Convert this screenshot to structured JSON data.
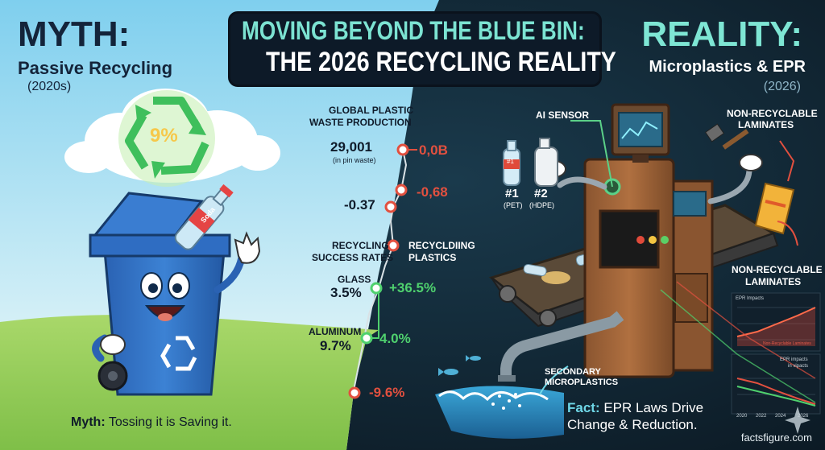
{
  "header": {
    "title_line1": "MOVING BEYOND THE BLUE BIN:",
    "title_line2": "THE 2026 RECYCLING REALITY"
  },
  "myth": {
    "heading": "MYTH:",
    "subtitle": "Passive Recycling",
    "year": "(2020s)",
    "recycle_percent": "9%",
    "bottle_label": "Soda",
    "caption_bold": "Myth:",
    "caption_text": " Tossing it is Saving it."
  },
  "reality": {
    "heading": "REALITY:",
    "subtitle": "Microplastics & EPR",
    "year": "(2026)",
    "labels": {
      "ai_sensor": "AI SENSOR",
      "non_recyclable_top_1": "NON-RECYCLABLE",
      "non_recyclable_top_2": "LAMINATES",
      "non_recyclable_bottom_1": "NON-RECYCLABLE",
      "non_recyclable_bottom_2": "LAMINATES",
      "pet_num": "#1",
      "pet_code": "(PET)",
      "hdpe_num": "#2",
      "hdpe_code": "(HDPE)",
      "pet_bottle_mark": "#1",
      "micro_1": "SECONDARY",
      "micro_2": "MICROPLASTICS"
    },
    "fact_bold": "Fact:",
    "fact_line1": " EPR Laws Drive",
    "fact_line2": "Change & Reduction."
  },
  "center_stats": {
    "global_label_1": "GLOBAL PLASTIC",
    "global_label_2": "WASTE PRODUCTION",
    "global_value": "29,001",
    "global_sub": "(in pin waste)",
    "global_right": "0,0B",
    "row2_left": "-0.37",
    "row2_right": "-0,68",
    "success_label_1": "RECYCLING",
    "success_label_2": "SUCCESS RATES",
    "right_label_1": "RECYCLDIING",
    "right_label_2": "PLASTICS",
    "glass_label": "GLASS",
    "glass_value": "3.5%",
    "glass_change": "+36.5%",
    "aluminum_label": "ALUMINUM",
    "aluminum_value": "9.7%",
    "aluminum_change": "4.0%",
    "bottom_change": "-9.6%"
  },
  "mini_charts": {
    "top_title": "EPR Impacts",
    "top_caption": "Non-Recyclable Laminates",
    "bottom_title_1": "EPR impacts",
    "bottom_title_2": "in vipacts",
    "years": [
      "2020",
      "2022",
      "2024",
      "2026"
    ]
  },
  "colors": {
    "myth_sky": "#8fd6ef",
    "reality_bg": "#0f2230",
    "accent_teal": "#7ce3d2",
    "positive": "#4fd16e",
    "negative": "#e2503f",
    "bin_blue": "#2d6cc0"
  },
  "footer": {
    "brand": "factsfigure.com"
  }
}
